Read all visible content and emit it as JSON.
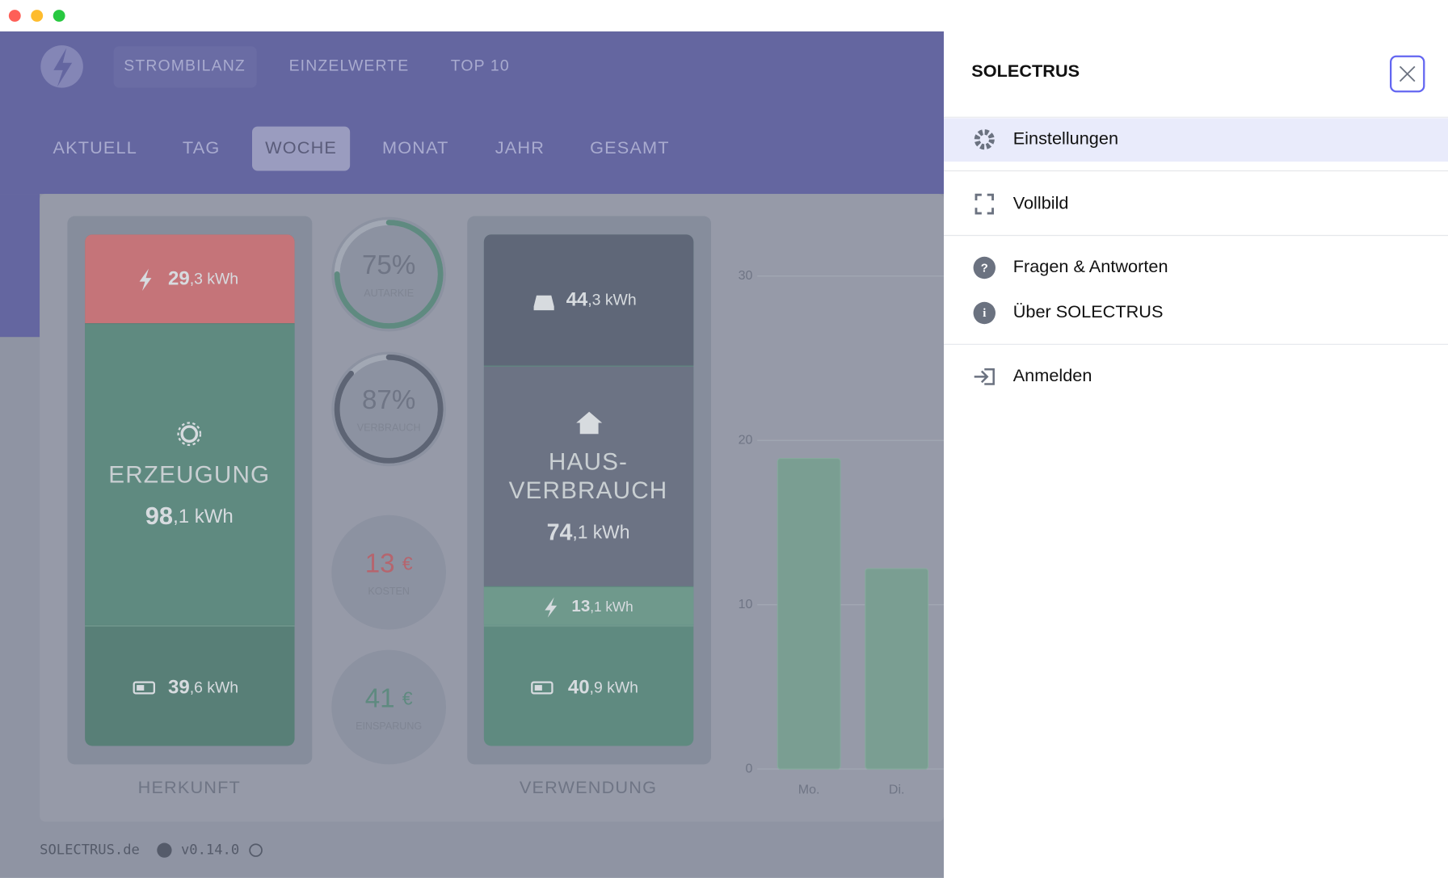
{
  "nav": {
    "items": [
      "STROMBILANZ",
      "EINZELWERTE",
      "TOP 10"
    ]
  },
  "tabs": [
    "AKTUELL",
    "TAG",
    "WOCHE",
    "MONAT",
    "JAHR",
    "GESAMT"
  ],
  "herkunft": {
    "label": "HERKUNFT",
    "grid": {
      "int": "29",
      "rest": ",3 kWh"
    },
    "erzeugung": {
      "title": "ERZEUGUNG",
      "int": "98",
      "rest": ",1 kWh"
    },
    "battery": {
      "int": "39",
      "rest": ",6 kWh"
    }
  },
  "gauges": [
    {
      "value": 75,
      "label": "75%",
      "caption": "AUTARKIE",
      "color": "#5f8a80"
    },
    {
      "value": 87,
      "label": "87%",
      "caption": "VERBRAUCH",
      "color": "#5d6474"
    }
  ],
  "kosten": {
    "amount": "13",
    "unit": "€",
    "caption": "KOSTEN"
  },
  "einsparung": {
    "amount": "41",
    "unit": "€",
    "caption": "EINSPARUNG"
  },
  "verwendung": {
    "label": "VERWENDUNG",
    "car": {
      "int": "44",
      "rest": ",3 kWh"
    },
    "haus": {
      "title1": "HAUS-",
      "title2": "VERBRAUCH",
      "int": "74",
      "rest": ",1 kWh"
    },
    "grid": {
      "int": "13",
      "rest": ",1 kWh"
    },
    "battery": {
      "int": "40",
      "rest": ",9 kWh"
    }
  },
  "chart_data": {
    "type": "bar",
    "categories": [
      "Mo.",
      "Di."
    ],
    "values": [
      18.9,
      12.2
    ],
    "ylim": [
      0,
      30
    ],
    "yticks": [
      0,
      10,
      20,
      30
    ],
    "color": "#7a9e92",
    "grid": true
  },
  "footer": {
    "site": "SOLECTRUS.de",
    "version": "v0.14.0"
  },
  "drawer": {
    "title": "SOLECTRUS",
    "items": [
      "Einstellungen",
      "Vollbild",
      "Fragen & Antworten",
      "Über SOLECTRUS",
      "Anmelden"
    ]
  }
}
